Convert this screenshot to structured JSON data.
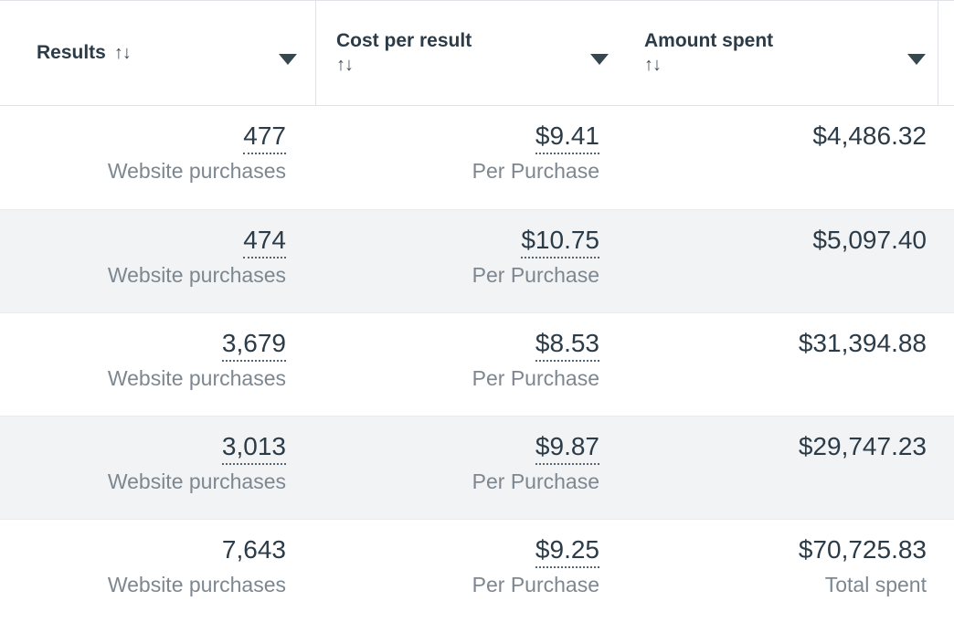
{
  "colors": {
    "text_primary": "#2b3b47",
    "text_secondary": "#7d8790",
    "row_alt_bg": "#f2f3f5",
    "border": "#dfe2e6",
    "underline": "#566570",
    "caret": "#37474f"
  },
  "header": {
    "columns": [
      {
        "label": "Results",
        "sort_icon": "↑↓",
        "menu_icon": "caret-down"
      },
      {
        "label": "Cost per result",
        "sort_icon": "↑↓",
        "menu_icon": "caret-down"
      },
      {
        "label": "Amount spent",
        "sort_icon": "↑↓",
        "menu_icon": "caret-down"
      }
    ]
  },
  "table": {
    "rows": [
      {
        "cells": [
          {
            "value": "477",
            "sub": "Website purchases",
            "underlined": true
          },
          {
            "value": "$9.41",
            "sub": "Per Purchase",
            "underlined": true
          },
          {
            "value": "$4,486.32",
            "sub": "",
            "underlined": false
          }
        ]
      },
      {
        "cells": [
          {
            "value": "474",
            "sub": "Website purchases",
            "underlined": true
          },
          {
            "value": "$10.75",
            "sub": "Per Purchase",
            "underlined": true
          },
          {
            "value": "$5,097.40",
            "sub": "",
            "underlined": false
          }
        ]
      },
      {
        "cells": [
          {
            "value": "3,679",
            "sub": "Website purchases",
            "underlined": true
          },
          {
            "value": "$8.53",
            "sub": "Per Purchase",
            "underlined": true
          },
          {
            "value": "$31,394.88",
            "sub": "",
            "underlined": false
          }
        ]
      },
      {
        "cells": [
          {
            "value": "3,013",
            "sub": "Website purchases",
            "underlined": true
          },
          {
            "value": "$9.87",
            "sub": "Per Purchase",
            "underlined": true
          },
          {
            "value": "$29,747.23",
            "sub": "",
            "underlined": false
          }
        ]
      },
      {
        "cells": [
          {
            "value": "7,643",
            "sub": "Website purchases",
            "underlined": false
          },
          {
            "value": "$9.25",
            "sub": "Per Purchase",
            "underlined": true
          },
          {
            "value": "$70,725.83",
            "sub": "Total spent",
            "underlined": false
          }
        ]
      }
    ]
  }
}
